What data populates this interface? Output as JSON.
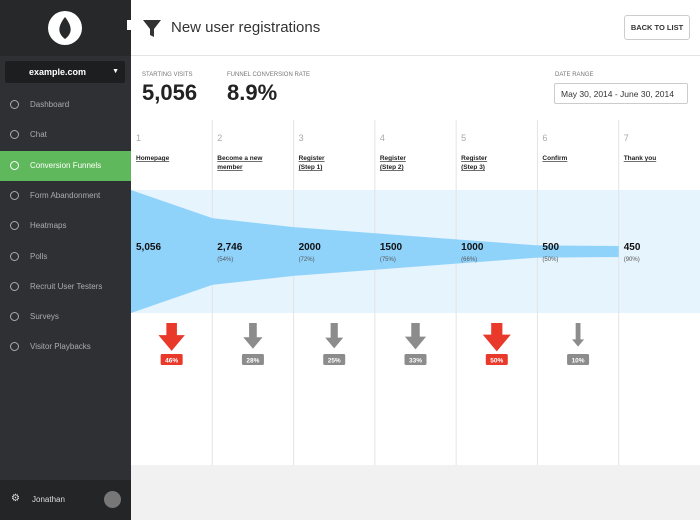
{
  "sidebar": {
    "site": "example.com",
    "active": 2,
    "menu": [
      "Dashboard",
      "Chat",
      "Conversion Funnels",
      "Form Abandonment",
      "Heatmaps",
      "Polls",
      "Recruit User Testers",
      "Surveys",
      "Visitor Playbacks"
    ],
    "user": "Jonathan"
  },
  "header": {
    "title": "New user registrations",
    "button": "BACK TO LIST"
  },
  "stats": [
    {
      "label": "STARTING VISITS",
      "value": "5,056"
    },
    {
      "label": "FUNNEL CONVERSION RATE",
      "value": "8.9%"
    }
  ],
  "date_range": {
    "label": "DATE RANGE",
    "value": "May 30, 2014 - June 30, 2014"
  },
  "chart_data": {
    "type": "funnel",
    "color": "#8fd3fb",
    "band_color": "#e6f4fd",
    "step_numbers": [
      1,
      2,
      3,
      4,
      5,
      6,
      7
    ],
    "categories": [
      "Homepage",
      "Become a new member",
      "Register (Step 1)",
      "Register (Step 2)",
      "Register (Step 3)",
      "Confirm",
      "Thank you"
    ],
    "values": [
      5056,
      2746,
      2000,
      1500,
      1000,
      500,
      450
    ],
    "value_labels": [
      "5,056",
      "2,746",
      "2000",
      "1500",
      "1000",
      "500",
      "450"
    ],
    "conversion": [
      null,
      54,
      72,
      75,
      66,
      50,
      90
    ],
    "conversion_labels": [
      null,
      "(54%)",
      "(72%)",
      "(75%)",
      "(66%)",
      "(50%)",
      "(90%)"
    ],
    "drops": [
      46,
      28,
      25,
      33,
      50,
      10,
      null
    ],
    "drop_labels": [
      "46%",
      "28%",
      "25%",
      "33%",
      "50%",
      "10%",
      null
    ],
    "drop_colors": [
      "#e8392b",
      "#8c8c8c",
      "#8c8c8c",
      "#8c8c8c",
      "#e8392b",
      "#8c8c8c",
      null
    ]
  }
}
